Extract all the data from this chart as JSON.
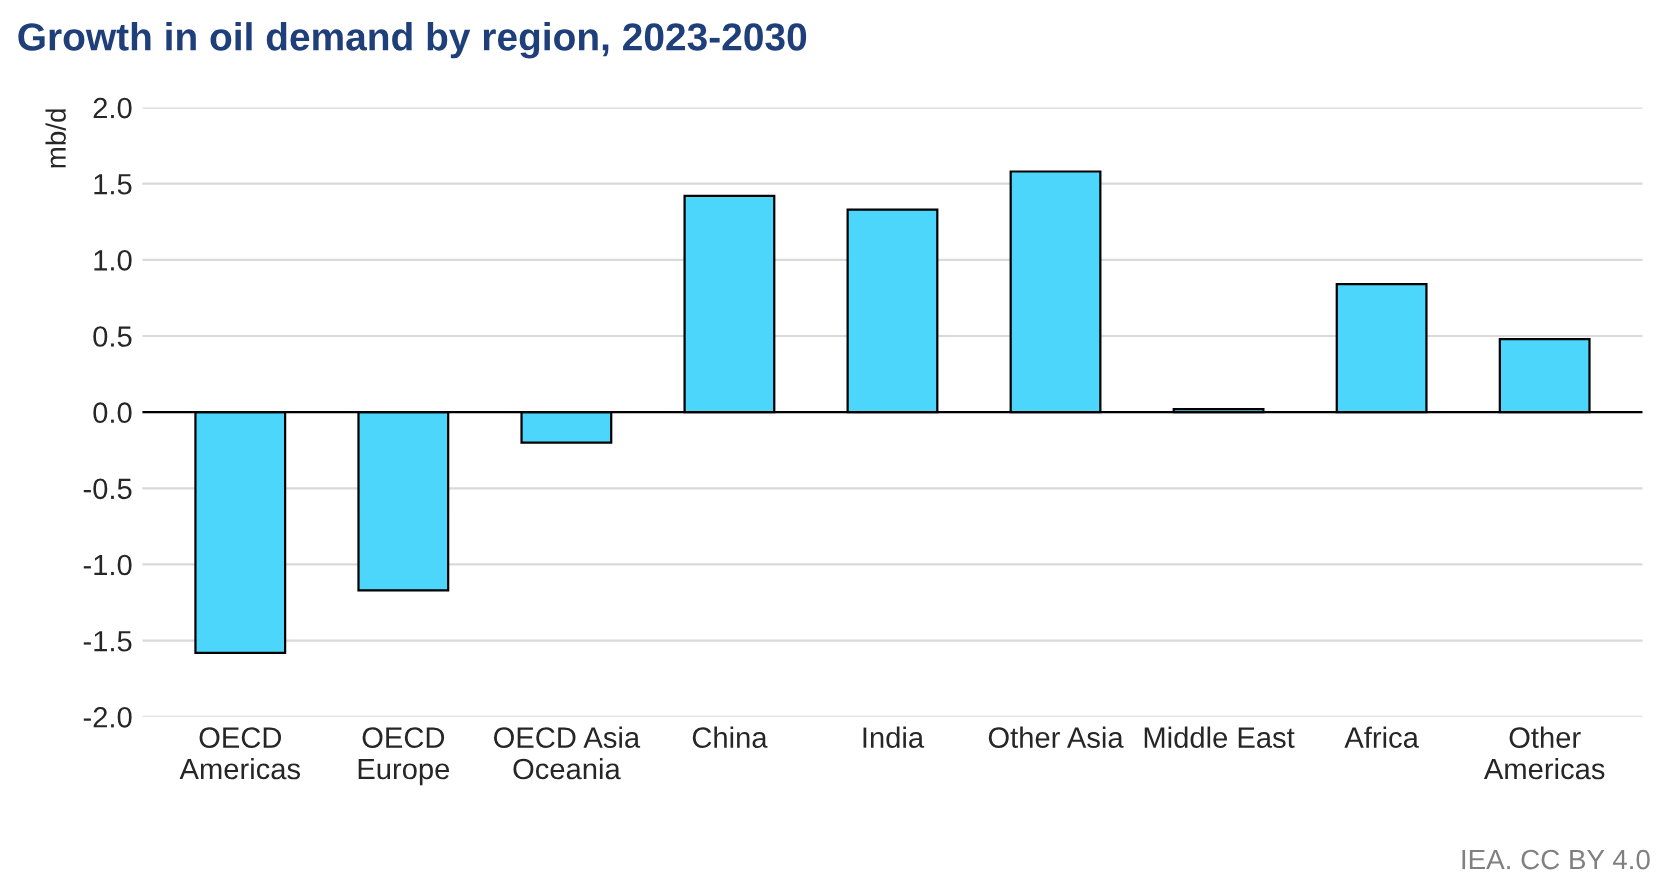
{
  "chart_data": {
    "type": "bar",
    "title": "Growth in oil demand by region, 2023-2030",
    "ylabel": "mb/d",
    "categories": [
      "OECD\nAmericas",
      "OECD\nEurope",
      "OECD Asia\nOceania",
      "China",
      "India",
      "Other Asia",
      "Middle East",
      "Africa",
      "Other\nAmericas"
    ],
    "values": [
      -1.58,
      -1.17,
      -0.2,
      1.42,
      1.33,
      1.58,
      0.02,
      0.84,
      0.48
    ],
    "color": "#4dd6fc",
    "ylim": [
      -2.0,
      2.0
    ],
    "yticks": [
      {
        "value": -2.0,
        "label": "-2.0"
      },
      {
        "value": -1.5,
        "label": "-1.5"
      },
      {
        "value": -1.0,
        "label": "-1.0"
      },
      {
        "value": -0.5,
        "label": "-0.5"
      },
      {
        "value": 0.0,
        "label": "0.0"
      },
      {
        "value": 0.5,
        "label": "0.5"
      },
      {
        "value": 1.0,
        "label": "1.0"
      },
      {
        "value": 1.5,
        "label": "1.5"
      },
      {
        "value": 2.0,
        "label": "2.0"
      }
    ],
    "grid": "y",
    "annotations": [
      "IEA. CC BY 4.0"
    ]
  }
}
